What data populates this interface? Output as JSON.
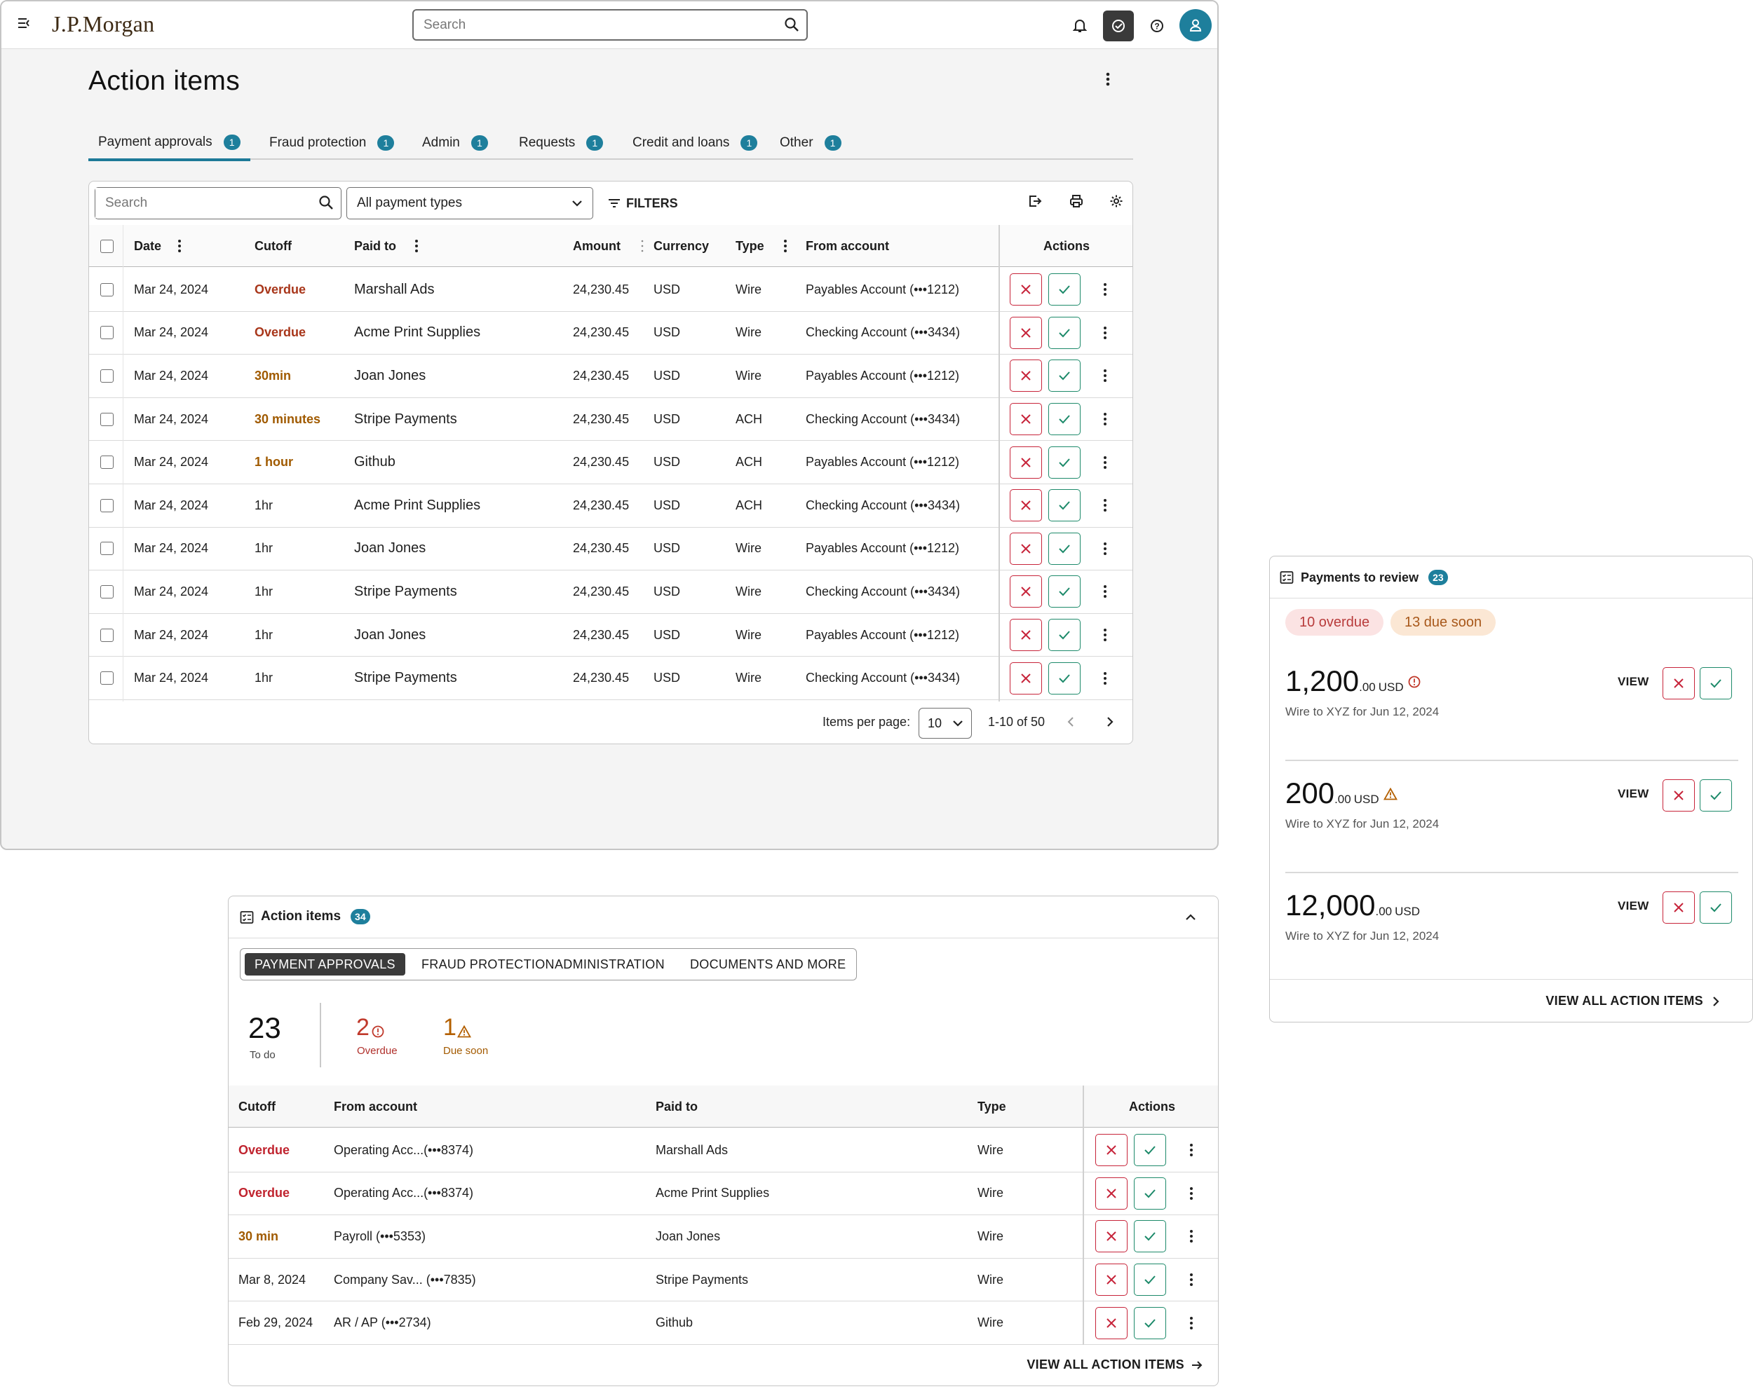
{
  "app": {
    "logo_text": "J.P.Morgan",
    "search_placeholder": "Search"
  },
  "page": {
    "title": "Action items",
    "tabs": [
      {
        "label": "Payment approvals",
        "count": "1"
      },
      {
        "label": "Fraud protection",
        "count": "1"
      },
      {
        "label": "Admin",
        "count": "1"
      },
      {
        "label": "Requests",
        "count": "1"
      },
      {
        "label": "Credit and loans",
        "count": "1"
      },
      {
        "label": "Other",
        "count": "1"
      }
    ]
  },
  "table": {
    "search_placeholder": "Search",
    "payment_type_selected": "All payment types",
    "filters_label": "FILTERS",
    "headers": {
      "date": "Date",
      "cutoff": "Cutoff",
      "paid_to": "Paid to",
      "amount": "Amount",
      "currency": "Currency",
      "type": "Type",
      "from_account": "From account",
      "actions": "Actions"
    },
    "rows": [
      {
        "date": "Mar 24, 2024",
        "cutoff": "Overdue",
        "cutoff_status": "overdue",
        "paid_to": "Marshall Ads",
        "amount": "24,230.45",
        "currency": "USD",
        "type": "Wire",
        "from_account": "Payables Account (•••1212)"
      },
      {
        "date": "Mar 24, 2024",
        "cutoff": "Overdue",
        "cutoff_status": "overdue",
        "paid_to": "Acme Print Supplies",
        "amount": "24,230.45",
        "currency": "USD",
        "type": "Wire",
        "from_account": "Checking Account (•••3434)"
      },
      {
        "date": "Mar 24, 2024",
        "cutoff": "30min",
        "cutoff_status": "soon",
        "paid_to": "Joan Jones",
        "amount": "24,230.45",
        "currency": "USD",
        "type": "Wire",
        "from_account": "Payables Account (•••1212)"
      },
      {
        "date": "Mar 24, 2024",
        "cutoff": "30 minutes",
        "cutoff_status": "soon",
        "paid_to": "Stripe Payments",
        "amount": "24,230.45",
        "currency": "USD",
        "type": "ACH",
        "from_account": "Checking Account (•••3434)"
      },
      {
        "date": "Mar 24, 2024",
        "cutoff": "1 hour",
        "cutoff_status": "soon",
        "paid_to": "Github",
        "amount": "24,230.45",
        "currency": "USD",
        "type": "ACH",
        "from_account": "Payables Account (•••1212)"
      },
      {
        "date": "Mar 24, 2024",
        "cutoff": "1hr",
        "cutoff_status": "normal",
        "paid_to": "Acme Print Supplies",
        "amount": "24,230.45",
        "currency": "USD",
        "type": "ACH",
        "from_account": "Checking Account (•••3434)"
      },
      {
        "date": "Mar 24, 2024",
        "cutoff": "1hr",
        "cutoff_status": "normal",
        "paid_to": "Joan Jones",
        "amount": "24,230.45",
        "currency": "USD",
        "type": "Wire",
        "from_account": "Payables Account (•••1212)"
      },
      {
        "date": "Mar 24, 2024",
        "cutoff": "1hr",
        "cutoff_status": "normal",
        "paid_to": "Stripe Payments",
        "amount": "24,230.45",
        "currency": "USD",
        "type": "Wire",
        "from_account": "Checking Account (•••3434)"
      },
      {
        "date": "Mar 24, 2024",
        "cutoff": "1hr",
        "cutoff_status": "normal",
        "paid_to": "Joan Jones",
        "amount": "24,230.45",
        "currency": "USD",
        "type": "Wire",
        "from_account": "Payables Account (•••1212)"
      },
      {
        "date": "Mar 24, 2024",
        "cutoff": "1hr",
        "cutoff_status": "normal",
        "paid_to": "Stripe Payments",
        "amount": "24,230.45",
        "currency": "USD",
        "type": "Wire",
        "from_account": "Checking Account (•••3434)"
      }
    ],
    "pagination": {
      "items_per_page_label": "Items per page:",
      "items_per_page": "10",
      "range": "1-10 of 50"
    }
  },
  "widget": {
    "title": "Action items",
    "count": "34",
    "segments": [
      "PAYMENT APPROVALS",
      "FRAUD PROTECTION",
      "ADMINISTRATION",
      "DOCUMENTS AND MORE"
    ],
    "stats": {
      "todo_value": "23",
      "todo_label": "To do",
      "overdue_value": "2",
      "overdue_label": "Overdue",
      "due_soon_value": "1",
      "due_soon_label": "Due soon"
    },
    "headers": {
      "cutoff": "Cutoff",
      "from_account": "From account",
      "paid_to": "Paid to",
      "type": "Type",
      "actions": "Actions"
    },
    "rows": [
      {
        "cutoff": "Overdue",
        "cutoff_status": "overdue",
        "from_account": "Operating Acc...(•••8374)",
        "paid_to": "Marshall Ads",
        "type": "Wire"
      },
      {
        "cutoff": "Overdue",
        "cutoff_status": "overdue",
        "from_account": "Operating Acc...(•••8374)",
        "paid_to": "Acme Print Supplies",
        "type": "Wire"
      },
      {
        "cutoff": "30 min",
        "cutoff_status": "soon",
        "from_account": "Payroll (•••5353)",
        "paid_to": "Joan Jones",
        "type": "Wire"
      },
      {
        "cutoff": "Mar 8, 2024",
        "cutoff_status": "normal",
        "from_account": "Company Sav... (•••7835)",
        "paid_to": "Stripe Payments",
        "type": "Wire"
      },
      {
        "cutoff": "Feb 29, 2024",
        "cutoff_status": "normal",
        "from_account": "AR / AP (•••2734)",
        "paid_to": "Github",
        "type": "Wire"
      }
    ],
    "footer_link": "VIEW ALL ACTION ITEMS"
  },
  "review_card": {
    "title": "Payments to review",
    "count": "23",
    "overdue_pill": "10 overdue",
    "due_soon_pill": "13 due soon",
    "items": [
      {
        "amount_whole": "1,200",
        "amount_cents": ".00",
        "currency": "USD",
        "status_icon": "error-circle-icon",
        "description": "Wire to XYZ for Jun 12, 2024",
        "view_label": "VIEW"
      },
      {
        "amount_whole": "200",
        "amount_cents": ".00",
        "currency": "USD",
        "status_icon": "warning-triangle-icon",
        "description": "Wire to XYZ for Jun 12, 2024",
        "view_label": "VIEW"
      },
      {
        "amount_whole": "12,000",
        "amount_cents": ".00",
        "currency": "USD",
        "status_icon": "",
        "description": "Wire to XYZ for Jun 12, 2024",
        "view_label": "VIEW"
      }
    ],
    "footer_link": "VIEW ALL ACTION ITEMS"
  },
  "colors": {
    "accent": "#1e7f9c",
    "reject": "#c7243a",
    "approve": "#1d8a6a",
    "overdue": "#a8361a",
    "due_soon": "#a05a00"
  }
}
